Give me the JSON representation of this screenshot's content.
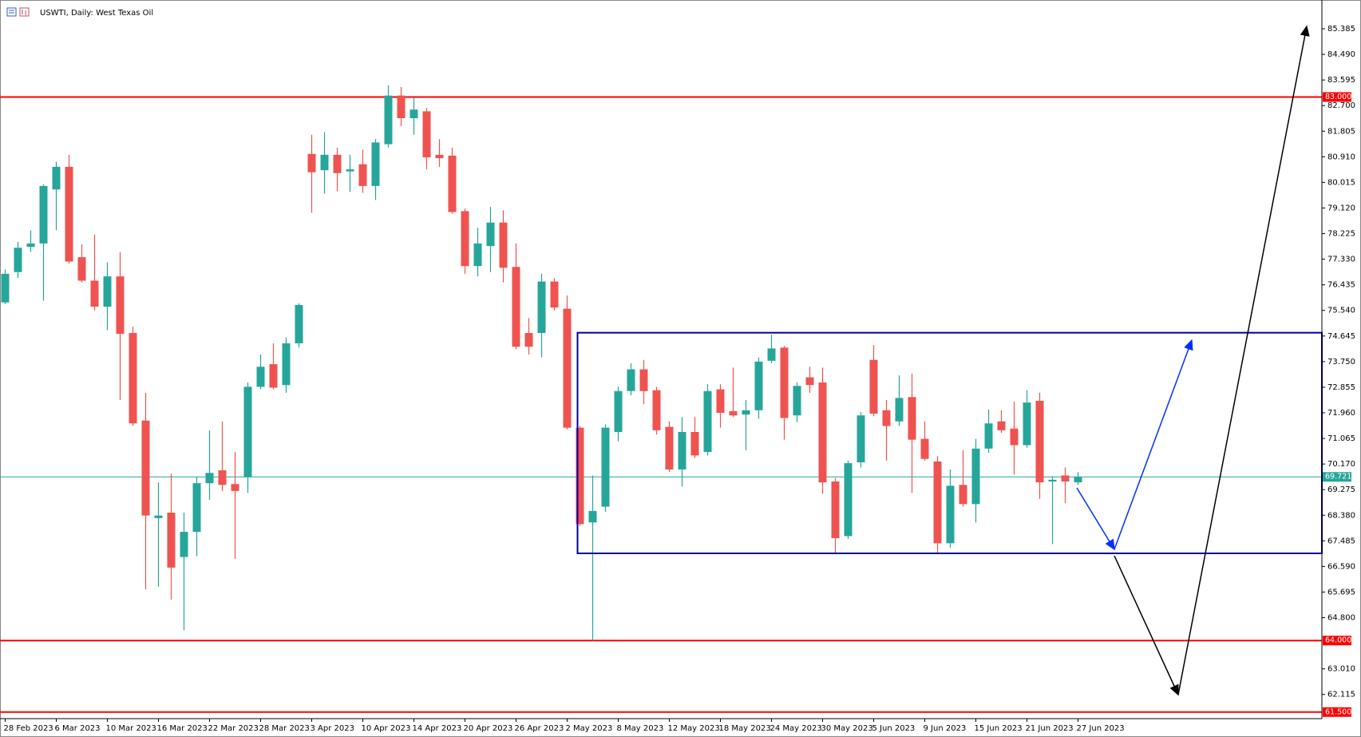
{
  "chart_data": {
    "type": "candlestick",
    "title": "USWTI, Daily:  West Texas Oil",
    "up_color": "#26a69a",
    "down_color": "#ef5350",
    "categories": [
      "28 Feb 2023",
      null,
      null,
      null,
      "6 Mar 2023",
      null,
      null,
      null,
      "10 Mar 2023",
      null,
      null,
      null,
      "16 Mar 2023",
      null,
      null,
      null,
      "22 Mar 2023",
      null,
      null,
      null,
      "28 Mar 2023",
      null,
      null,
      null,
      "3 Apr 2023",
      null,
      null,
      null,
      "10 Apr 2023",
      null,
      null,
      null,
      "14 Apr 2023",
      null,
      null,
      null,
      "20 Apr 2023",
      null,
      null,
      null,
      "26 Apr 2023",
      null,
      null,
      null,
      "2 May 2023",
      null,
      null,
      null,
      "8 May 2023",
      null,
      null,
      null,
      "12 May 2023",
      null,
      null,
      null,
      "18 May 2023",
      null,
      null,
      null,
      "24 May 2023",
      null,
      null,
      null,
      "30 May 2023",
      null,
      null,
      null,
      "5 Jun 2023",
      null,
      null,
      null,
      "9 Jun 2023",
      null,
      null,
      null,
      "15 Jun 2023",
      null,
      null,
      null,
      "21 Jun 2023",
      null,
      null,
      null,
      "27 Jun 2023"
    ],
    "open": [
      75.82,
      76.88,
      77.76,
      77.88,
      79.77,
      80.56,
      77.4,
      76.58,
      75.67,
      76.73,
      74.75,
      71.69,
      68.28,
      68.47,
      66.92,
      67.8,
      69.5,
      69.95,
      69.47,
      69.71,
      72.87,
      73.66,
      72.93,
      74.39,
      81.01,
      80.44,
      80.98,
      80.4,
      80.65,
      79.89,
      81.35,
      83.05,
      82.26,
      82.5,
      80.98,
      80.95,
      79.01,
      77.09,
      77.79,
      78.61,
      77.06,
      74.75,
      74.75,
      76.55,
      75.6,
      71.44,
      68.13,
      68.68,
      71.29,
      72.72,
      73.48,
      72.75,
      71.47,
      69.98,
      71.29,
      70.59,
      72.78,
      72.02,
      71.9,
      72.05,
      73.78,
      74.24,
      71.87,
      73.2,
      73.02,
      69.56,
      67.65,
      70.23,
      73.81,
      72.05,
      71.66,
      72.51,
      71.05,
      70.26,
      67.4,
      69.44,
      68.77,
      70.71,
      71.66,
      71.41,
      70.83,
      72.38,
      69.56,
      69.77,
      69.53
    ],
    "high": [
      76.97,
      77.94,
      78.34,
      79.95,
      80.74,
      80.98,
      77.85,
      78.19,
      77.22,
      77.58,
      74.97,
      72.66,
      69.53,
      69.83,
      68.47,
      69.71,
      71.35,
      71.66,
      70.59,
      73.02,
      74.0,
      74.39,
      74.6,
      75.79,
      81.68,
      81.77,
      81.23,
      80.98,
      81.16,
      81.53,
      83.41,
      83.35,
      82.99,
      82.62,
      81.53,
      81.23,
      79.1,
      78.43,
      79.16,
      79.04,
      77.88,
      75.27,
      76.82,
      76.67,
      76.06,
      71.5,
      69.77,
      71.56,
      72.87,
      73.69,
      73.81,
      72.87,
      71.66,
      71.81,
      71.81,
      72.96,
      72.96,
      73.54,
      72.41,
      73.9,
      74.69,
      74.3,
      73.02,
      73.57,
      73.54,
      69.68,
      70.29,
      71.99,
      74.33,
      72.41,
      73.27,
      73.33,
      71.66,
      70.44,
      69.98,
      70.65,
      71.05,
      72.08,
      72.05,
      72.35,
      72.75,
      72.66,
      69.74,
      70.05,
      69.89
    ],
    "low": [
      75.76,
      76.67,
      77.58,
      75.88,
      78.34,
      77.18,
      76.52,
      75.54,
      74.85,
      72.41,
      71.5,
      65.79,
      65.88,
      65.43,
      64.36,
      66.95,
      68.92,
      69.23,
      66.86,
      69.16,
      72.78,
      72.78,
      72.66,
      74.24,
      78.95,
      79.62,
      79.71,
      79.68,
      79.65,
      79.4,
      81.23,
      81.98,
      81.68,
      80.47,
      80.56,
      78.92,
      76.82,
      76.73,
      76.88,
      76.52,
      74.18,
      74.0,
      73.9,
      75.54,
      71.38,
      68.01,
      64.0,
      68.5,
      70.96,
      72.57,
      72.26,
      71.2,
      69.89,
      69.38,
      70.38,
      70.47,
      71.44,
      71.81,
      70.65,
      71.75,
      73.69,
      71.02,
      71.63,
      72.66,
      69.13,
      67.07,
      67.55,
      70.05,
      71.84,
      70.29,
      71.5,
      69.16,
      70.29,
      67.04,
      67.25,
      68.68,
      68.13,
      70.56,
      71.26,
      69.8,
      70.74,
      68.95,
      67.37,
      68.8,
      69.44
    ],
    "close": [
      76.82,
      77.73,
      77.88,
      79.89,
      80.56,
      77.25,
      76.58,
      75.67,
      76.73,
      74.72,
      71.59,
      68.37,
      68.37,
      66.55,
      67.8,
      69.5,
      69.86,
      69.44,
      69.23,
      72.87,
      73.57,
      72.84,
      74.39,
      75.73,
      80.37,
      80.98,
      80.34,
      80.47,
      79.89,
      81.41,
      83.05,
      82.26,
      82.56,
      80.89,
      80.86,
      78.98,
      77.09,
      77.88,
      78.61,
      77.03,
      74.27,
      74.27,
      76.55,
      75.64,
      71.44,
      68.07,
      68.53,
      71.44,
      72.72,
      73.48,
      72.72,
      71.35,
      69.98,
      71.29,
      70.47,
      72.72,
      71.96,
      71.87,
      72.05,
      73.75,
      74.21,
      71.78,
      72.9,
      72.93,
      69.53,
      67.58,
      70.2,
      71.87,
      71.93,
      71.5,
      72.48,
      71.02,
      70.35,
      67.4,
      69.41,
      68.77,
      70.71,
      71.59,
      71.35,
      70.83,
      72.32,
      69.53,
      69.62,
      69.56,
      69.72
    ],
    "ylim": [
      61.27,
      86.24
    ],
    "yticks": [
      85.385,
      {
        "value": 84.49,
        "label": "84.490"
      },
      83.595,
      {
        "value": 82.7,
        "label": "82.700"
      },
      81.805,
      {
        "value": 80.91,
        "label": "80.910"
      },
      80.015,
      {
        "value": 79.12,
        "label": "79.120"
      },
      78.225,
      {
        "value": 77.33,
        "label": "77.330"
      },
      76.435,
      {
        "value": 75.54,
        "label": "75.540"
      },
      74.645,
      {
        "value": 73.75,
        "label": "73.750"
      },
      72.855,
      {
        "value": 71.96,
        "label": "71.960"
      },
      71.065,
      {
        "value": 70.17,
        "label": "70.170"
      },
      69.275,
      {
        "value": 68.38,
        "label": "68.380"
      },
      67.485,
      {
        "value": 66.59,
        "label": "66.590"
      },
      65.695,
      {
        "value": 64.8,
        "label": "64.800"
      },
      {
        "value": 63.01,
        "label": "63.010"
      },
      62.115
    ],
    "levels": [
      {
        "value": 83,
        "label": "83.000",
        "color": "#ff0000"
      },
      {
        "value": 64,
        "label": "64.000",
        "color": "#ff0000"
      },
      {
        "value": 61.5,
        "label": "61.500",
        "color": "#ff0000"
      }
    ],
    "current_price": 69.721,
    "current_color": "#26a69a"
  }
}
